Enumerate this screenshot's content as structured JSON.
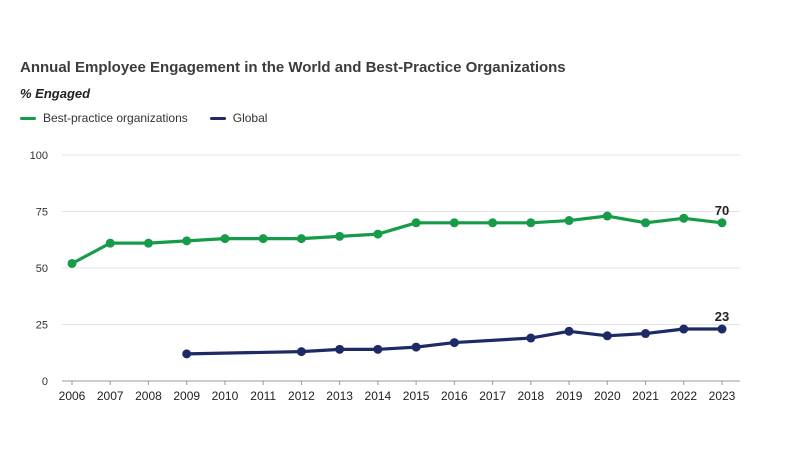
{
  "chart_data": {
    "type": "line",
    "title": "Annual Employee Engagement in the World and Best-Practice Organizations",
    "ylabel": "% Engaged",
    "xlabel": "",
    "ylim": [
      0,
      100
    ],
    "yticks": [
      "0",
      "25",
      "50",
      "75",
      "100"
    ],
    "grid": true,
    "legend_position": "top-left",
    "categories": [
      "2006",
      "2007",
      "2008",
      "2009",
      "2010",
      "2011",
      "2012",
      "2013",
      "2014",
      "2015",
      "2016",
      "2017",
      "2018",
      "2019",
      "2020",
      "2021",
      "2022",
      "2023"
    ],
    "series": [
      {
        "name": "Best-practice organizations",
        "color": "#169b48",
        "values": [
          52,
          61,
          61,
          62,
          63,
          63,
          63,
          64,
          65,
          70,
          70,
          70,
          70,
          71,
          73,
          70,
          72,
          70
        ],
        "end_label": "70"
      },
      {
        "name": "Global",
        "color": "#1e2a66",
        "values": [
          null,
          null,
          null,
          12,
          null,
          null,
          13,
          14,
          14,
          15,
          17,
          null,
          19,
          22,
          20,
          21,
          23,
          23
        ],
        "end_label": "23"
      }
    ]
  }
}
